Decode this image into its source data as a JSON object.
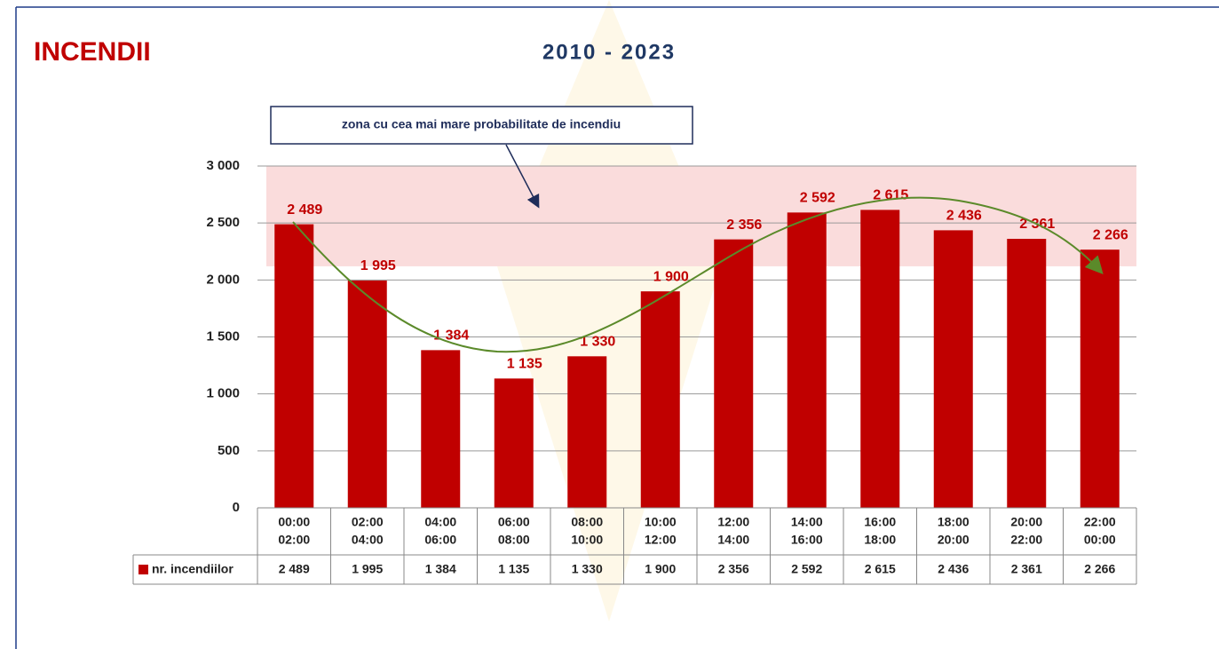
{
  "chart_data": {
    "type": "bar",
    "title": "INCENDII",
    "subtitle": "2010 - 2023",
    "annotation": "zona cu cea mai mare probabilitate de incendiu",
    "categories": [
      [
        "00:00",
        "02:00"
      ],
      [
        "02:00",
        "04:00"
      ],
      [
        "04:00",
        "06:00"
      ],
      [
        "06:00",
        "08:00"
      ],
      [
        "08:00",
        "10:00"
      ],
      [
        "10:00",
        "12:00"
      ],
      [
        "12:00",
        "14:00"
      ],
      [
        "14:00",
        "16:00"
      ],
      [
        "16:00",
        "18:00"
      ],
      [
        "18:00",
        "20:00"
      ],
      [
        "20:00",
        "22:00"
      ],
      [
        "22:00",
        "00:00"
      ]
    ],
    "series": [
      {
        "name": "nr. incendiilor",
        "color": "#c00000",
        "values": [
          2489,
          1995,
          1384,
          1135,
          1330,
          1900,
          2356,
          2592,
          2615,
          2436,
          2361,
          2266
        ],
        "value_labels": [
          "2 489",
          "1 995",
          "1 384",
          "1 135",
          "1 330",
          "1 900",
          "2 356",
          "2 592",
          "2 615",
          "2 436",
          "2 361",
          "2 266"
        ]
      }
    ],
    "ylim": [
      0,
      3000
    ],
    "yticks": [
      0,
      500,
      {
        "value": 1000,
        "label": "1 000"
      },
      {
        "value": 1500,
        "label": "1 500"
      },
      {
        "value": 2000,
        "label": "2 000"
      },
      {
        "value": 2500,
        "label": "2 500"
      },
      {
        "value": 3000,
        "label": "3 000"
      }
    ],
    "zone": [
      2120,
      3000
    ],
    "zone_color": "#fadcdc",
    "grid": true
  }
}
